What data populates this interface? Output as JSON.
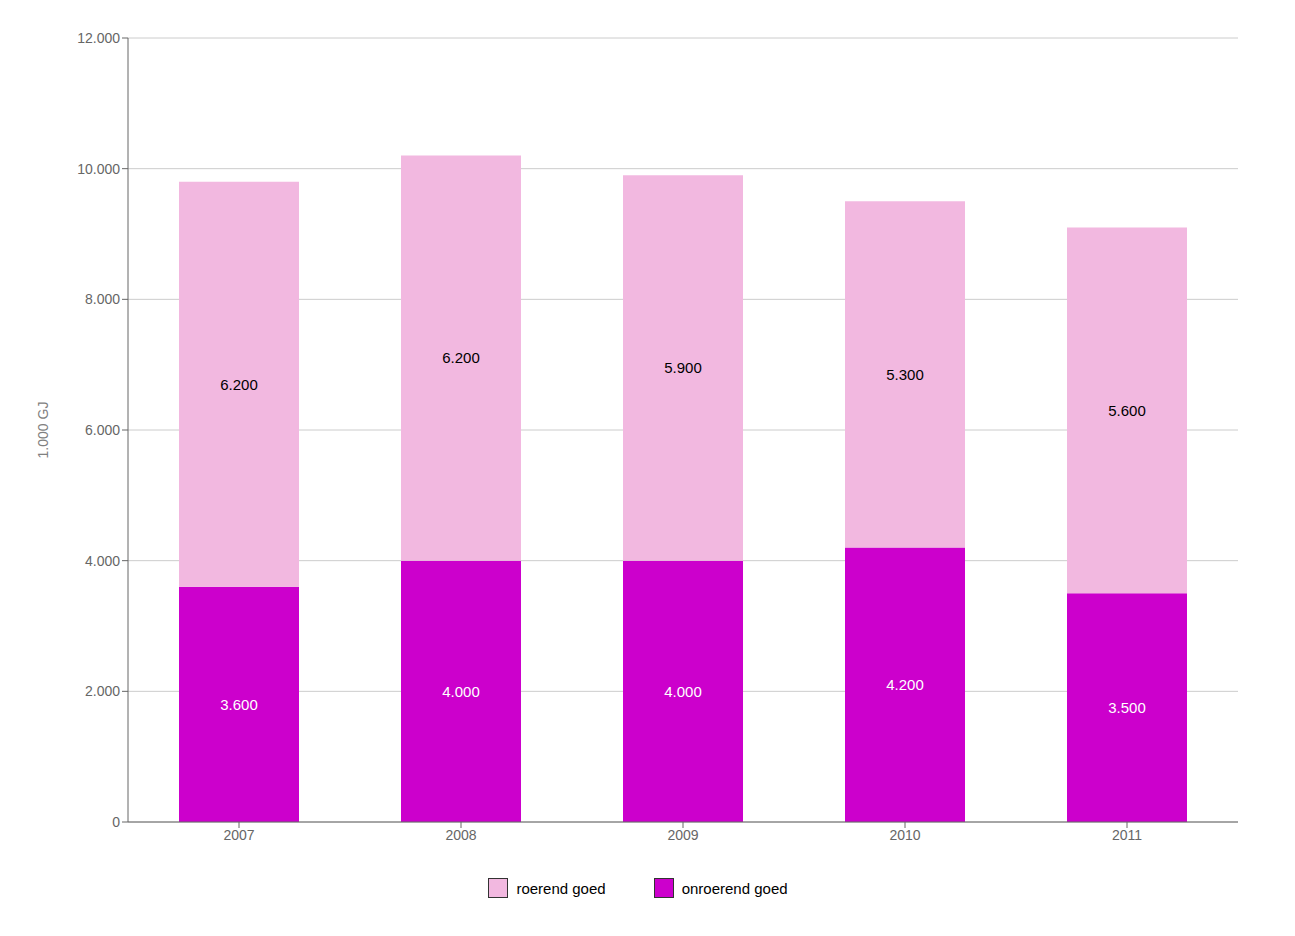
{
  "chart_data": {
    "type": "bar",
    "stacked": true,
    "ylabel": "1.000 GJ",
    "categories": [
      "2007",
      "2008",
      "2009",
      "2010",
      "2011"
    ],
    "series": [
      {
        "name": "onroerend goed",
        "color": "#cc00cc",
        "values": [
          3600,
          4000,
          4000,
          4200,
          3500
        ],
        "value_labels": [
          "3.600",
          "4.000",
          "4.000",
          "4.200",
          "3.500"
        ]
      },
      {
        "name": "roerend goed",
        "color": "#f2b8e0",
        "values": [
          6200,
          6200,
          5900,
          5300,
          5600
        ],
        "value_labels": [
          "6.200",
          "6.200",
          "5.900",
          "5.300",
          "5.600"
        ]
      }
    ],
    "ylim": [
      0,
      12000
    ],
    "yticks": [
      {
        "value": 0,
        "label": "0"
      },
      {
        "value": 2000,
        "label": "2.000"
      },
      {
        "value": 4000,
        "label": "4.000"
      },
      {
        "value": 6000,
        "label": "6.000"
      },
      {
        "value": 8000,
        "label": "8.000"
      },
      {
        "value": 10000,
        "label": "10.000"
      },
      {
        "value": 12000,
        "label": "12.000"
      }
    ],
    "grid": true,
    "legend": "bottom",
    "data_labels": true
  }
}
